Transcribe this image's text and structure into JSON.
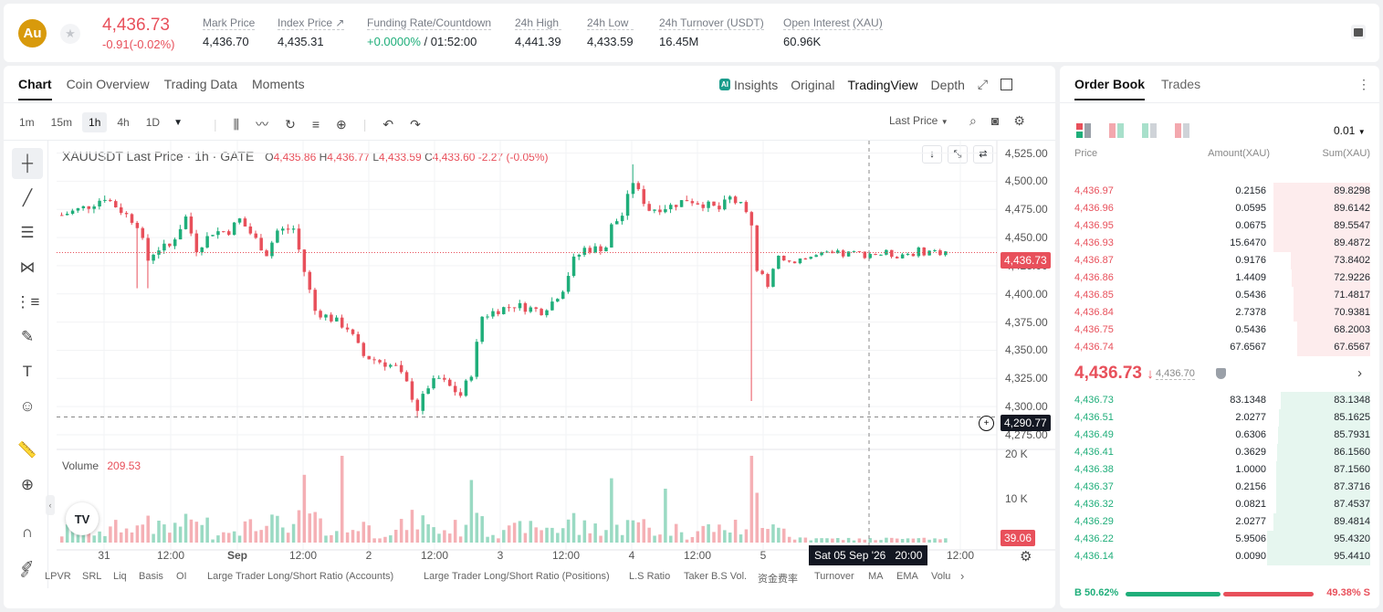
{
  "header": {
    "logo": "Au",
    "price": "4,436.73",
    "change": "-0.91(-0.02%)",
    "stats": [
      {
        "label": "Mark Price",
        "value": "4,436.70"
      },
      {
        "label": "Index Price ↗",
        "value": "4,435.31"
      },
      {
        "label": "Funding Rate/Countdown",
        "value_green": "+0.0000%",
        "value_rest": " / 01:52:00"
      },
      {
        "label": "24h High",
        "value": "4,441.39"
      },
      {
        "label": "24h Low",
        "value": "4,433.59"
      },
      {
        "label": "24h Turnover (USDT)",
        "value": "16.45M"
      },
      {
        "label": "Open Interest (XAU)",
        "value": "60.96K"
      }
    ]
  },
  "chart_tabs": {
    "tabs": [
      "Chart",
      "Coin Overview",
      "Trading Data",
      "Moments"
    ],
    "ai": "AI",
    "insights": "Insights",
    "original": "Original",
    "tradingview": "TradingView",
    "depth": "Depth"
  },
  "toolbar": {
    "intervals": [
      "1m",
      "15m",
      "1h",
      "4h",
      "1D"
    ],
    "price_type": "Last Price"
  },
  "legend": {
    "symbol": "XAUUSDT Last Price · 1h · GATE",
    "O": "4,435.86",
    "H": "4,436.77",
    "L": "4,433.59",
    "C": "4,433.60",
    "chg": "-2.27 (-0.05%)",
    "volume_label": "Volume",
    "volume_value": "209.53"
  },
  "price_axis": {
    "ticks": [
      "4,525.00",
      "4,500.00",
      "4,475.00",
      "4,450.00",
      "4,425.00",
      "4,400.00",
      "4,375.00",
      "4,350.00",
      "4,325.00",
      "4,300.00",
      "4,275.00"
    ],
    "last_price_tag": "4,436.73",
    "crosshair_tag": "4,290.77"
  },
  "volume_axis": {
    "ticks": [
      "20 K",
      "10 K"
    ],
    "tag": "39.06"
  },
  "time_axis": {
    "ticks": [
      "31",
      "12:00",
      "Sep",
      "12:00",
      "2",
      "12:00",
      "3",
      "12:00",
      "4",
      "12:00",
      "5",
      "12:00"
    ],
    "crosshair": "Sat 05 Sep '26   20:00"
  },
  "tv_logo": "TV",
  "indicators": [
    "LPVR",
    "SRL",
    "Liq",
    "Basis",
    "OI",
    "Large Trader Long/Short Ratio (Accounts)",
    "Large Trader Long/Short Ratio (Positions)",
    "L.S Ratio",
    "Taker B.S Vol.",
    "资金费率",
    "Turnover",
    "MA",
    "EMA",
    "Volu"
  ],
  "colors": {
    "up": "#1fae7a",
    "down": "#e8505b"
  },
  "chart_data": {
    "type": "candlestick",
    "series": [
      {
        "name": "XAUUSDT Last Price",
        "x": "hourly Aug 31 – Sep 5",
        "y_range": [
          4275,
          4525
        ]
      }
    ],
    "last": 4436.73,
    "crosshair": 4290.77
  },
  "orderbook": {
    "tabs": [
      "Order Book",
      "Trades"
    ],
    "precision": "0.01",
    "headers": [
      "Price",
      "Amount(XAU)",
      "Sum(XAU)"
    ],
    "asks": [
      [
        "4,436.97",
        "0.2156",
        "89.8298"
      ],
      [
        "4,436.96",
        "0.0595",
        "89.6142"
      ],
      [
        "4,436.95",
        "0.0675",
        "89.5547"
      ],
      [
        "4,436.93",
        "15.6470",
        "89.4872"
      ],
      [
        "4,436.87",
        "0.9176",
        "73.8402"
      ],
      [
        "4,436.86",
        "1.4409",
        "72.9226"
      ],
      [
        "4,436.85",
        "0.5436",
        "71.4817"
      ],
      [
        "4,436.84",
        "2.7378",
        "70.9381"
      ],
      [
        "4,436.75",
        "0.5436",
        "68.2003"
      ],
      [
        "4,436.74",
        "67.6567",
        "67.6567"
      ]
    ],
    "mid_price": "4,436.73",
    "mid_arrow": "↓",
    "mid_mark": "4,436.70",
    "bids": [
      [
        "4,436.73",
        "83.1348",
        "83.1348"
      ],
      [
        "4,436.51",
        "2.0277",
        "85.1625"
      ],
      [
        "4,436.49",
        "0.6306",
        "85.7931"
      ],
      [
        "4,436.41",
        "0.3629",
        "86.1560"
      ],
      [
        "4,436.38",
        "1.0000",
        "87.1560"
      ],
      [
        "4,436.37",
        "0.2156",
        "87.3716"
      ],
      [
        "4,436.32",
        "0.0821",
        "87.4537"
      ],
      [
        "4,436.29",
        "2.0277",
        "89.4814"
      ],
      [
        "4,436.22",
        "5.9506",
        "95.4320"
      ],
      [
        "4,436.14",
        "0.0090",
        "95.4410"
      ]
    ],
    "buy_label": "B 50.62%",
    "sell_label": "49.38% S",
    "buy_fraction": 0.5062
  }
}
